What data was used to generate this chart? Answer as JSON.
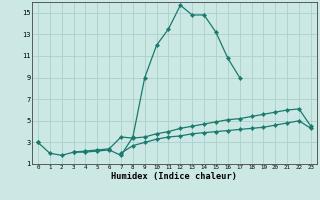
{
  "xlabel": "Humidex (Indice chaleur)",
  "x_values": [
    0,
    1,
    2,
    3,
    4,
    5,
    6,
    7,
    8,
    9,
    10,
    11,
    12,
    13,
    14,
    15,
    16,
    17,
    18,
    19,
    20,
    21,
    22,
    23
  ],
  "line1": [
    3.0,
    2.0,
    1.8,
    2.1,
    2.1,
    2.2,
    2.3,
    1.8,
    3.5,
    9.0,
    12.0,
    13.5,
    15.7,
    14.8,
    14.8,
    13.2,
    10.8,
    9.0,
    null,
    null,
    null,
    null,
    null,
    null
  ],
  "line2": [
    3.0,
    null,
    null,
    2.1,
    2.2,
    2.3,
    2.4,
    3.5,
    3.4,
    3.5,
    3.8,
    4.0,
    4.3,
    4.5,
    4.7,
    4.9,
    5.1,
    5.2,
    5.4,
    5.6,
    5.8,
    6.0,
    6.1,
    4.5
  ],
  "line3": [
    null,
    null,
    null,
    null,
    null,
    null,
    null,
    2.0,
    2.7,
    3.0,
    3.3,
    3.5,
    3.6,
    3.8,
    3.9,
    4.0,
    4.1,
    4.2,
    4.3,
    4.4,
    4.6,
    4.8,
    5.0,
    4.3
  ],
  "line_color": "#1a7a6e",
  "bg_color": "#cce8e4",
  "grid_color": "#aacfcc",
  "xlim": [
    -0.5,
    23.5
  ],
  "ylim": [
    1,
    16
  ],
  "yticks": [
    1,
    3,
    5,
    7,
    9,
    11,
    13,
    15
  ],
  "xticks": [
    0,
    1,
    2,
    3,
    4,
    5,
    6,
    7,
    8,
    9,
    10,
    11,
    12,
    13,
    14,
    15,
    16,
    17,
    18,
    19,
    20,
    21,
    22,
    23
  ]
}
